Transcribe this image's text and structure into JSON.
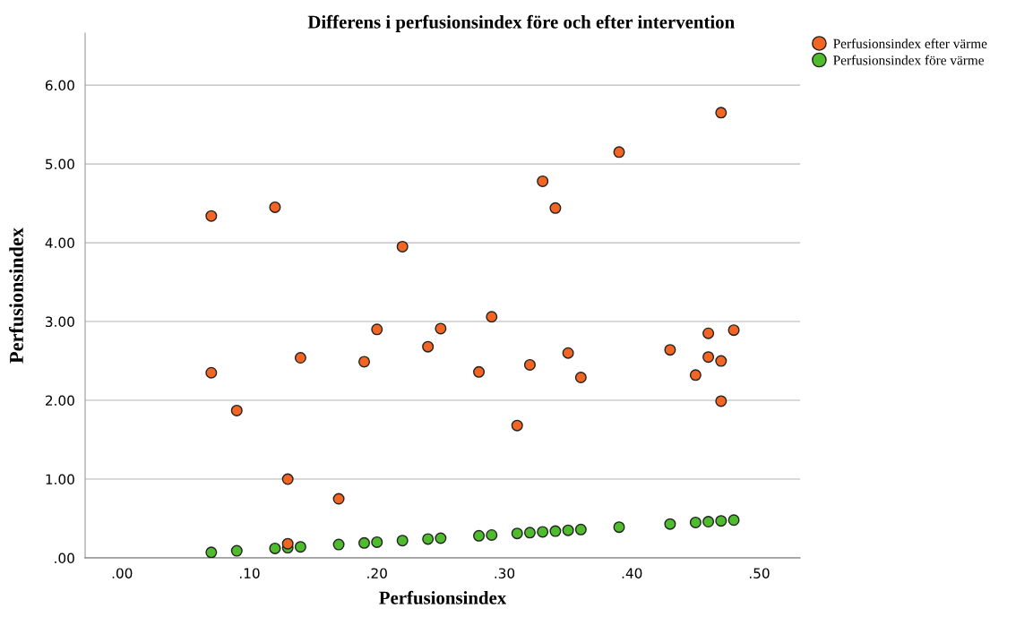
{
  "chart_data": {
    "type": "scatter",
    "title": "Differens i perfusionsindex före och efter intervention",
    "xlabel": "Perfusionsindex",
    "ylabel": "Perfusionsindex",
    "series": [
      {
        "name": "Perfusionsindex efter värme",
        "color": "#f26522",
        "x": [
          0.07,
          0.07,
          0.09,
          0.12,
          0.13,
          0.13,
          0.14,
          0.17,
          0.19,
          0.2,
          0.22,
          0.24,
          0.25,
          0.28,
          0.29,
          0.31,
          0.32,
          0.33,
          0.34,
          0.35,
          0.36,
          0.39,
          0.43,
          0.45,
          0.46,
          0.46,
          0.47,
          0.47,
          0.47,
          0.48
        ],
        "values": [
          4.34,
          2.35,
          1.87,
          4.45,
          1.0,
          0.18,
          2.54,
          0.75,
          2.49,
          2.9,
          3.95,
          2.68,
          2.91,
          2.36,
          3.06,
          1.68,
          2.45,
          4.78,
          4.44,
          2.6,
          2.29,
          5.15,
          2.64,
          2.32,
          2.85,
          2.55,
          5.65,
          2.5,
          1.99,
          2.89
        ]
      },
      {
        "name": "Perfusionsindex före värme",
        "color": "#4fbc2e",
        "x": [
          0.07,
          0.09,
          0.12,
          0.13,
          0.14,
          0.17,
          0.19,
          0.2,
          0.22,
          0.24,
          0.25,
          0.28,
          0.29,
          0.31,
          0.32,
          0.33,
          0.34,
          0.35,
          0.36,
          0.39,
          0.43,
          0.45,
          0.46,
          0.47,
          0.48
        ],
        "values": [
          0.07,
          0.09,
          0.12,
          0.13,
          0.14,
          0.17,
          0.19,
          0.2,
          0.22,
          0.24,
          0.25,
          0.28,
          0.29,
          0.31,
          0.32,
          0.33,
          0.34,
          0.35,
          0.36,
          0.39,
          0.43,
          0.45,
          0.46,
          0.47,
          0.48
        ]
      }
    ],
    "xlim": [
      -0.029,
      0.532
    ],
    "ylim": [
      0,
      6.66
    ],
    "xticks": [
      {
        "value": 0,
        "label": ".00"
      },
      {
        "value": 0.1,
        "label": ".10"
      },
      {
        "value": 0.2,
        "label": ".20"
      },
      {
        "value": 0.3,
        "label": ".30"
      },
      {
        "value": 0.4,
        "label": ".40"
      },
      {
        "value": 0.5,
        "label": ".50"
      }
    ],
    "yticks": [
      {
        "value": 0,
        "label": ".00"
      },
      {
        "value": 1,
        "label": "1.00"
      },
      {
        "value": 2,
        "label": "2.00"
      },
      {
        "value": 3,
        "label": "3.00"
      },
      {
        "value": 4,
        "label": "4.00"
      },
      {
        "value": 5,
        "label": "5.00"
      },
      {
        "value": 6,
        "label": "6.00"
      }
    ],
    "grid": "y",
    "legend": "top right",
    "marker": "circle"
  }
}
